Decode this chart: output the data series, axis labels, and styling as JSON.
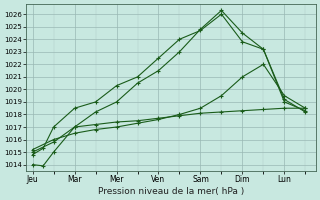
{
  "background_color": "#c8e8e0",
  "grid_color": "#b0ccc8",
  "line_color": "#1a5c1a",
  "title": "Pression niveau de la mer( hPa )",
  "x_labels": [
    "Jeu",
    "Mar",
    "Mer",
    "Ven",
    "Sam",
    "Dim",
    "Lun"
  ],
  "x_tick_pos": [
    0,
    2,
    4,
    6,
    8,
    10,
    12
  ],
  "xlim": [
    -0.3,
    13.5
  ],
  "ylim": [
    1013.5,
    1026.8
  ],
  "yticks": [
    1014,
    1015,
    1016,
    1017,
    1018,
    1019,
    1020,
    1021,
    1022,
    1023,
    1024,
    1025,
    1026
  ],
  "series": [
    {
      "x": [
        0,
        0.5,
        1,
        2,
        3,
        4,
        5,
        6,
        7,
        8,
        9,
        10,
        11,
        12,
        13
      ],
      "y": [
        1014.0,
        1013.9,
        1015.0,
        1017.0,
        1018.2,
        1019.0,
        1020.5,
        1021.5,
        1023.0,
        1024.8,
        1026.3,
        1024.5,
        1023.2,
        1019.0,
        1018.3
      ]
    },
    {
      "x": [
        0,
        0.5,
        1,
        2,
        3,
        4,
        5,
        6,
        7,
        8,
        9,
        10,
        11,
        12,
        13
      ],
      "y": [
        1014.8,
        1015.3,
        1017.0,
        1018.5,
        1019.0,
        1020.3,
        1021.0,
        1022.5,
        1024.0,
        1024.7,
        1026.0,
        1023.8,
        1023.2,
        1019.2,
        1018.2
      ]
    },
    {
      "x": [
        0,
        1,
        2,
        3,
        4,
        5,
        6,
        7,
        8,
        9,
        10,
        11,
        12,
        13
      ],
      "y": [
        1015.0,
        1015.8,
        1017.0,
        1017.2,
        1017.4,
        1017.5,
        1017.7,
        1017.9,
        1018.1,
        1018.2,
        1018.3,
        1018.4,
        1018.5,
        1018.5
      ]
    },
    {
      "x": [
        0,
        1,
        2,
        3,
        4,
        5,
        6,
        7,
        8,
        9,
        10,
        11,
        12,
        13
      ],
      "y": [
        1015.2,
        1016.0,
        1016.5,
        1016.8,
        1017.0,
        1017.3,
        1017.6,
        1018.0,
        1018.5,
        1019.5,
        1021.0,
        1022.0,
        1019.5,
        1018.5
      ]
    }
  ]
}
